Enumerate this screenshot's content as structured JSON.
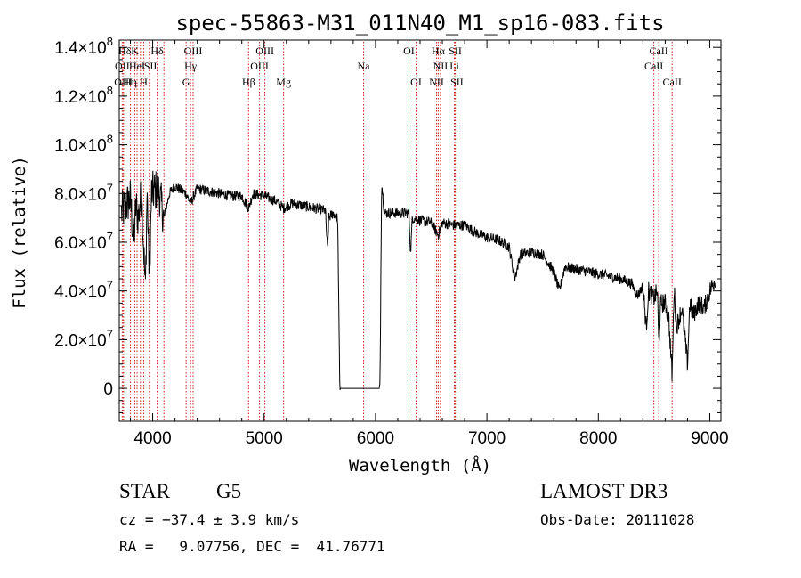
{
  "chart_data": {
    "type": "line",
    "title": "spec-55863-M31_011N40_M1_sp16-083.fits",
    "xlabel": "Wavelength (Å)",
    "ylabel": "Flux (relative)",
    "xlim": [
      3700,
      9100
    ],
    "ylim": [
      -13500000,
      143000000
    ],
    "x_ticks": [
      4000,
      5000,
      6000,
      7000,
      8000,
      9000
    ],
    "x_tick_labels": [
      "4000",
      "5000",
      "6000",
      "7000",
      "8000",
      "9000"
    ],
    "y_ticks": [
      0,
      20000000,
      40000000,
      60000000,
      80000000,
      100000000,
      120000000,
      140000000
    ],
    "y_tick_labels": [
      {
        "value": 0,
        "mant": "0",
        "exp": ""
      },
      {
        "value": 20000000,
        "mant": "2.0×10",
        "exp": "7"
      },
      {
        "value": 40000000,
        "mant": "4.0×10",
        "exp": "7"
      },
      {
        "value": 60000000,
        "mant": "6.0×10",
        "exp": "7"
      },
      {
        "value": 80000000,
        "mant": "8.0×10",
        "exp": "7"
      },
      {
        "value": 100000000,
        "mant": "1.0×10",
        "exp": "8"
      },
      {
        "value": 120000000,
        "mant": "1.2×10",
        "exp": "8"
      },
      {
        "value": 140000000,
        "mant": "1.4×10",
        "exp": "8"
      }
    ],
    "line_color": "#000000",
    "marker_line_color": "#cc2222",
    "spectrum_anchors": [
      [
        3720,
        72000000
      ],
      [
        3800,
        78000000
      ],
      [
        3830,
        60000000
      ],
      [
        3850,
        75000000
      ],
      [
        3870,
        70000000
      ],
      [
        3900,
        80000000
      ],
      [
        3935,
        40000000
      ],
      [
        3950,
        82000000
      ],
      [
        3970,
        45000000
      ],
      [
        3990,
        80000000
      ],
      [
        4050,
        82000000
      ],
      [
        4101,
        70000000
      ],
      [
        4150,
        80000000
      ],
      [
        4200,
        83000000
      ],
      [
        4300,
        80000000
      ],
      [
        4340,
        76000000
      ],
      [
        4400,
        82000000
      ],
      [
        4500,
        81000000
      ],
      [
        4600,
        80000000
      ],
      [
        4700,
        79000000
      ],
      [
        4800,
        79000000
      ],
      [
        4861,
        74000000
      ],
      [
        4900,
        80000000
      ],
      [
        5000,
        79000000
      ],
      [
        5100,
        77000000
      ],
      [
        5175,
        74000000
      ],
      [
        5250,
        76000000
      ],
      [
        5350,
        75000000
      ],
      [
        5450,
        74000000
      ],
      [
        5550,
        73000000
      ],
      [
        5570,
        56000000
      ],
      [
        5580,
        70000000
      ],
      [
        5620,
        72000000
      ],
      [
        5660,
        70000000
      ],
      [
        5680,
        0
      ],
      [
        6040,
        0
      ],
      [
        6055,
        85000000
      ],
      [
        6080,
        72000000
      ],
      [
        6200,
        72000000
      ],
      [
        6300,
        72000000
      ],
      [
        6315,
        55000000
      ],
      [
        6330,
        70000000
      ],
      [
        6400,
        69000000
      ],
      [
        6500,
        68000000
      ],
      [
        6563,
        63000000
      ],
      [
        6600,
        68000000
      ],
      [
        6700,
        67000000
      ],
      [
        6800,
        67000000
      ],
      [
        6900,
        64000000
      ],
      [
        7000,
        62000000
      ],
      [
        7100,
        61000000
      ],
      [
        7200,
        58000000
      ],
      [
        7250,
        45000000
      ],
      [
        7300,
        55000000
      ],
      [
        7400,
        56000000
      ],
      [
        7500,
        55000000
      ],
      [
        7600,
        48000000
      ],
      [
        7650,
        40000000
      ],
      [
        7700,
        50000000
      ],
      [
        7800,
        49000000
      ],
      [
        7900,
        48000000
      ],
      [
        8000,
        47000000
      ],
      [
        8100,
        46000000
      ],
      [
        8200,
        45000000
      ],
      [
        8300,
        43000000
      ],
      [
        8350,
        38000000
      ],
      [
        8400,
        42000000
      ],
      [
        8430,
        25000000
      ],
      [
        8450,
        40000000
      ],
      [
        8500,
        37000000
      ],
      [
        8530,
        40000000
      ],
      [
        8542,
        18000000
      ],
      [
        8560,
        35000000
      ],
      [
        8600,
        35000000
      ],
      [
        8630,
        30000000
      ],
      [
        8662,
        5000000
      ],
      [
        8680,
        42000000
      ],
      [
        8700,
        25000000
      ],
      [
        8750,
        33000000
      ],
      [
        8800,
        10000000
      ],
      [
        8820,
        35000000
      ],
      [
        8850,
        30000000
      ],
      [
        8900,
        35000000
      ],
      [
        8950,
        33000000
      ],
      [
        9000,
        40000000
      ],
      [
        9050,
        45000000
      ]
    ],
    "line_markers": [
      {
        "label": "Hδ",
        "x": 3750,
        "row": 1
      },
      {
        "label": "OII",
        "x": 3727,
        "row": 2
      },
      {
        "label": "OIII",
        "x": 3737,
        "row": 3
      },
      {
        "label": "K",
        "x": 3840,
        "row": 1
      },
      {
        "label": "HeI",
        "x": 3860,
        "row": 2
      },
      {
        "label": "Hη",
        "x": 3800,
        "row": 3
      },
      {
        "label": "H",
        "x": 3920,
        "row": 3
      },
      {
        "label": "Hδ",
        "x": 4040,
        "row": 1
      },
      {
        "label": "SII",
        "x": 3980,
        "row": 2
      },
      {
        "label": "OIII",
        "x": 4363,
        "row": 1
      },
      {
        "label": "Hγ",
        "x": 4340,
        "row": 2
      },
      {
        "label": "G",
        "x": 4300,
        "row": 3
      },
      {
        "label": "OIII",
        "x": 5007,
        "row": 1
      },
      {
        "label": "OIII",
        "x": 4959,
        "row": 2
      },
      {
        "label": "Hβ",
        "x": 4861,
        "row": 3
      },
      {
        "label": "Mg",
        "x": 5175,
        "row": 3
      },
      {
        "label": "Na",
        "x": 5893,
        "row": 2
      },
      {
        "label": "OI",
        "x": 6300,
        "row": 1
      },
      {
        "label": "OI",
        "x": 6364,
        "row": 3
      },
      {
        "label": "Hα",
        "x": 6563,
        "row": 1
      },
      {
        "label": "NII",
        "x": 6583,
        "row": 2
      },
      {
        "label": "NII",
        "x": 6548,
        "row": 3
      },
      {
        "label": "SII",
        "x": 6716,
        "row": 1
      },
      {
        "label": "Li",
        "x": 6708,
        "row": 2
      },
      {
        "label": "SII",
        "x": 6731,
        "row": 3
      },
      {
        "label": "CaII",
        "x": 8542,
        "row": 1
      },
      {
        "label": "CaII",
        "x": 8498,
        "row": 2
      },
      {
        "label": "CaII",
        "x": 8662,
        "row": 3
      }
    ],
    "marker_positions": [
      3727,
      3737,
      3750,
      3800,
      3840,
      3860,
      3890,
      3920,
      3970,
      4040,
      4101,
      4300,
      4340,
      4363,
      4861,
      4959,
      5007,
      5175,
      5893,
      6300,
      6364,
      6548,
      6563,
      6583,
      6708,
      6716,
      6731,
      8498,
      8542,
      8662
    ]
  },
  "info": {
    "object_class": "STAR",
    "subclass": "G5",
    "survey": "LAMOST DR3",
    "redshift_line": "cz = −37.4 ± 3.9 km/s",
    "obs_date_line": "Obs-Date: 20111028",
    "coords_line": "RA =   9.07756, DEC =  41.76771"
  }
}
